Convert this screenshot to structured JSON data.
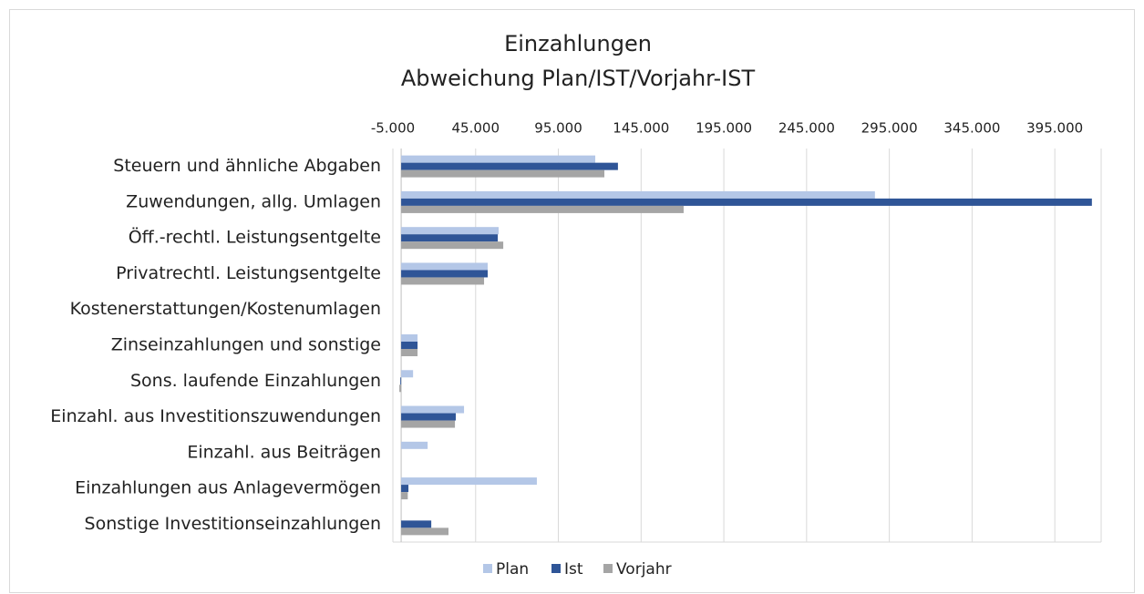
{
  "chart_data": {
    "type": "bar",
    "orientation": "horizontal",
    "title": "Einzahlungen",
    "subtitle": "Abweichung Plan/IST/Vorjahr-IST",
    "categories": [
      "Steuern und ähnliche Abgaben",
      "Zuwendungen, allg. Umlagen",
      "Öff.-rechtl. Leistungsentgelte",
      "Privatrechtl. Leistungsentgelte",
      "Kostenerstattungen/Kostenumlagen",
      "Zinseinzahlungen und sonstige",
      "Sons. laufende Einzahlungen",
      "Einzahl. aus Investitionszuwendungen",
      "Einzahl. aus Beiträgen",
      "Einzahlungen aus Anlagevermögen",
      "Sonstige Investitionseinzahlungen"
    ],
    "series": [
      {
        "name": "Plan",
        "color": "#b4c7e7",
        "values": [
          117300,
          286300,
          58900,
          52300,
          0,
          9900,
          7200,
          38000,
          16000,
          82000,
          0
        ]
      },
      {
        "name": "Ist",
        "color": "#2f5597",
        "values": [
          131000,
          417400,
          58400,
          52300,
          0,
          9900,
          -500,
          33000,
          0,
          4400,
          18200
        ]
      },
      {
        "name": "Vorjahr",
        "color": "#a5a5a5",
        "values": [
          122800,
          170700,
          61700,
          50100,
          0,
          9900,
          -1100,
          32500,
          0,
          4000,
          28600
        ]
      }
    ],
    "xlim": [
      -5000,
      423000
    ],
    "xticks": [
      {
        "value": -5000,
        "label": "-5.000"
      },
      {
        "value": 45000,
        "label": "45.000"
      },
      {
        "value": 95000,
        "label": "95.000"
      },
      {
        "value": 145000,
        "label": "145.000"
      },
      {
        "value": 195000,
        "label": "195.000"
      },
      {
        "value": 245000,
        "label": "245.000"
      },
      {
        "value": 295000,
        "label": "295.000"
      },
      {
        "value": 345000,
        "label": "345.000"
      },
      {
        "value": 395000,
        "label": "395.000"
      }
    ],
    "grid": true,
    "legend": "bottom"
  }
}
